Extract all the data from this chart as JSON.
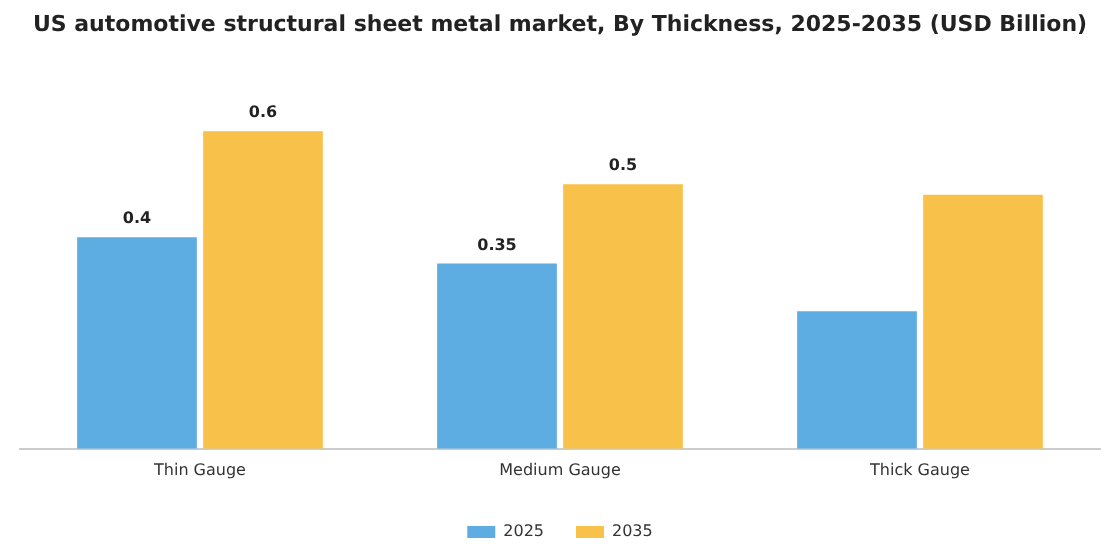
{
  "chart_data": {
    "type": "bar",
    "title": "US automotive structural sheet metal market, By Thickness, 2025-2035 (USD Billion)",
    "categories": [
      "Thin Gauge",
      "Medium Gauge",
      "Thick Gauge"
    ],
    "series": [
      {
        "name": "2025",
        "color": "#5dade2",
        "values": [
          0.4,
          0.35,
          0.26
        ],
        "value_labels": [
          "0.4",
          "0.35",
          null
        ]
      },
      {
        "name": "2035",
        "color": "#f8c14a",
        "values": [
          0.6,
          0.5,
          0.48
        ],
        "value_labels": [
          "0.6",
          "0.5",
          null
        ]
      }
    ],
    "tick_labels": "x",
    "grid": false,
    "legend": "bottom"
  }
}
